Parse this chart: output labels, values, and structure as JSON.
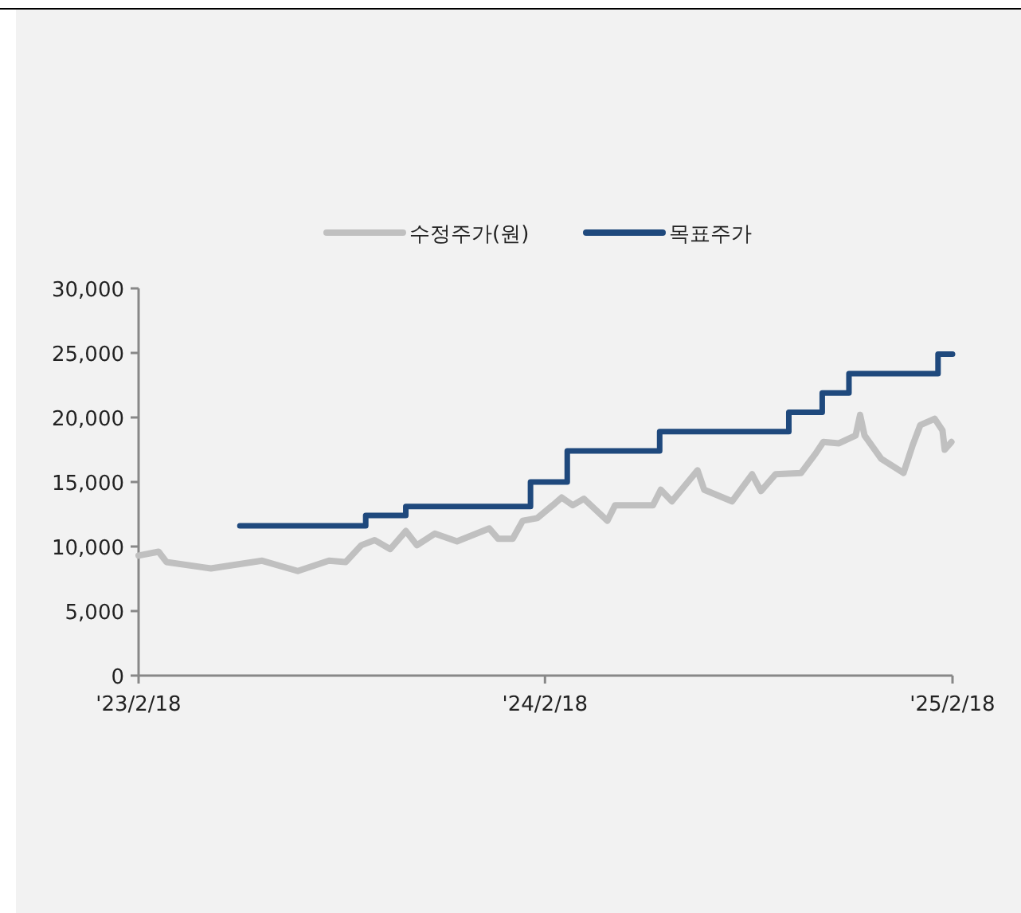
{
  "chart_data": {
    "type": "line",
    "legend": "top",
    "grid": false,
    "xlim": [
      "2023-02-18",
      "2025-02-18"
    ],
    "xticks": [
      {
        "value": "2023-02-18",
        "label": "'23/2/18"
      },
      {
        "value": "2024-02-18",
        "label": "'24/2/18"
      },
      {
        "value": "2025-02-18",
        "label": "'25/2/18"
      }
    ],
    "ylim": [
      0,
      30000
    ],
    "yticks": [
      0,
      {
        "value": 5000,
        "label": "5,000"
      },
      {
        "value": 10000,
        "label": "10,000"
      },
      {
        "value": 15000,
        "label": "15,000"
      },
      {
        "value": 20000,
        "label": "20,000"
      },
      {
        "value": 25000,
        "label": "25,000"
      },
      {
        "value": 30000,
        "label": "30,000"
      }
    ],
    "series": [
      {
        "name": "수정주가(원)",
        "color": "#c0c0c0",
        "x": [
          "2023-02-18",
          "2023-03-08",
          "2023-03-15",
          "2023-04-24",
          "2023-06-09",
          "2023-07-11",
          "2023-08-08",
          "2023-08-23",
          "2023-09-06",
          "2023-09-18",
          "2023-10-02",
          "2023-10-16",
          "2023-10-26",
          "2023-11-11",
          "2023-12-01",
          "2023-12-30",
          "2024-01-07",
          "2024-01-20",
          "2024-01-29",
          "2024-02-11",
          "2024-02-25",
          "2024-03-04",
          "2024-03-14",
          "2024-03-24",
          "2024-04-14",
          "2024-04-21",
          "2024-05-25",
          "2024-06-01",
          "2024-06-11",
          "2024-07-04",
          "2024-07-10",
          "2024-08-04",
          "2024-08-22",
          "2024-08-30",
          "2024-09-12",
          "2024-10-05",
          "2024-10-18",
          "2024-10-25",
          "2024-11-08",
          "2024-11-23",
          "2024-11-27",
          "2024-12-01",
          "2024-12-16",
          "2025-01-05",
          "2025-01-13",
          "2025-01-20",
          "2025-02-02",
          "2025-02-09",
          "2025-02-11",
          "2025-02-17"
        ],
        "values": [
          9300,
          9600,
          8800,
          8300,
          8900,
          8100,
          8900,
          8800,
          10100,
          10500,
          9800,
          11200,
          10100,
          11000,
          10400,
          11400,
          10600,
          10600,
          12000,
          12200,
          13200,
          13800,
          13200,
          13700,
          12000,
          13200,
          13200,
          14400,
          13500,
          15900,
          14400,
          13500,
          15600,
          14300,
          15600,
          15700,
          17200,
          18100,
          18000,
          18600,
          20200,
          18600,
          16800,
          15700,
          17800,
          19400,
          19900,
          19000,
          17500,
          18100
        ]
      },
      {
        "name": "목표주가",
        "type": "step",
        "color": "#1f497d",
        "x": [
          "2023-05-20",
          "2023-09-10",
          "2023-10-16",
          "2024-02-05",
          "2024-03-09",
          "2024-05-31",
          "2024-09-24",
          "2024-10-24",
          "2024-11-17",
          "2025-02-05",
          "2025-02-18"
        ],
        "values": [
          11600,
          12400,
          13100,
          15000,
          17400,
          18900,
          20400,
          21900,
          23400,
          24900,
          24900
        ]
      }
    ]
  }
}
